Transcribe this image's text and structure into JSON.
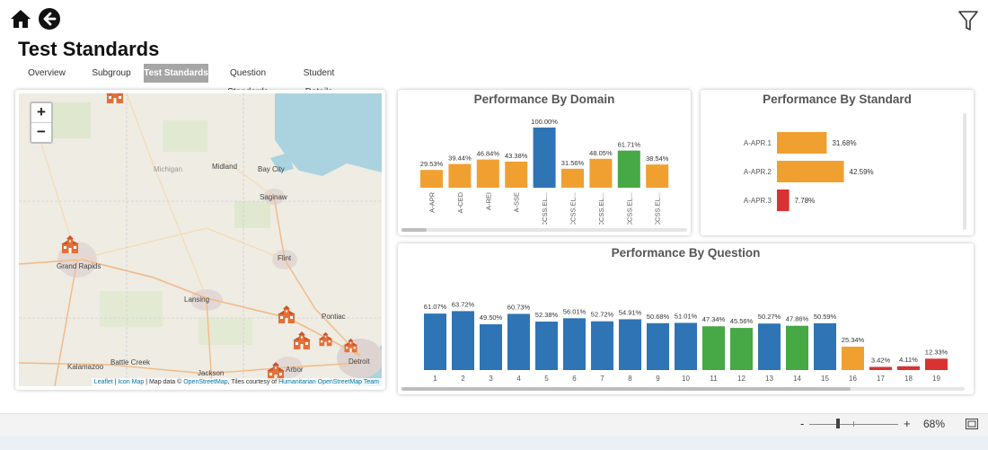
{
  "page_title": "Test Standards",
  "tabs": [
    {
      "label": "Overview",
      "active": false
    },
    {
      "label": "Subgroup",
      "active": false
    },
    {
      "label": "Test Standards",
      "active": true
    },
    {
      "label": "Question Standards",
      "active": false
    },
    {
      "label": "Student Details",
      "active": false
    }
  ],
  "icons": {
    "home": "home-icon",
    "back": "back-arrow-icon",
    "filter": "filter-icon",
    "school": "school-marker-icon",
    "fit": "fit-to-page-icon"
  },
  "colors": {
    "blue": "#2f74b5",
    "orange": "#f0a030",
    "green": "#47a846",
    "red": "#d93232",
    "tab_active": "#a6a6a6"
  },
  "map": {
    "zoom_in": "+",
    "zoom_out": "−",
    "cities": [
      {
        "name": "Michigan",
        "kind": "region"
      },
      {
        "name": "Midland"
      },
      {
        "name": "Bay City"
      },
      {
        "name": "Saginaw"
      },
      {
        "name": "Grand Rapids"
      },
      {
        "name": "Flint"
      },
      {
        "name": "Lansing"
      },
      {
        "name": "Pontiac"
      },
      {
        "name": "Kalamazoo"
      },
      {
        "name": "Battle Creek"
      },
      {
        "name": "Jackson"
      },
      {
        "name": "Arbor"
      },
      {
        "name": "Detroit"
      }
    ],
    "attribution": {
      "leaflet": "Leaflet",
      "sep1": " | ",
      "iconmap": "Icon Map",
      "text1": " | Map data © ",
      "osm": "OpenStreetMap",
      "text2": ", Tiles courtesy of ",
      "hot": "Humanitarian OpenStreetMap Team"
    }
  },
  "charts": {
    "domain": {
      "title": "Performance By Domain"
    },
    "standard": {
      "title": "Performance By Standard"
    },
    "question": {
      "title": "Performance By Question"
    }
  },
  "chart_data": [
    {
      "type": "bar",
      "title": "Performance By Domain",
      "categories": [
        "A-APR",
        "A-CED",
        "A-REI",
        "A-SSE",
        "CCSS.EL...",
        "CCSS.EL...",
        "CCSS.EL...",
        "CCSS.EL...",
        "CCSS.EL..."
      ],
      "values": [
        29.53,
        39.44,
        46.84,
        43.38,
        100.0,
        31.56,
        48.05,
        61.71,
        38.54
      ],
      "labels": [
        "29.53%",
        "39.44%",
        "46.84%",
        "43.38%",
        "100.00%",
        "31.56%",
        "48.05%",
        "61.71%",
        "38.54%"
      ],
      "colors": [
        "orange",
        "orange",
        "orange",
        "orange",
        "blue",
        "orange",
        "orange",
        "green",
        "orange"
      ],
      "ylim": [
        0,
        100
      ]
    },
    {
      "type": "bar",
      "orientation": "horizontal",
      "title": "Performance By Standard",
      "categories": [
        "A-APR.1",
        "A-APR.2",
        "A-APR.3"
      ],
      "values": [
        31.68,
        42.59,
        7.78
      ],
      "labels": [
        "31.68%",
        "42.59%",
        "7.78%"
      ],
      "colors": [
        "orange",
        "orange",
        "red"
      ],
      "xlim": [
        0,
        100
      ]
    },
    {
      "type": "bar",
      "title": "Performance By Question",
      "categories": [
        "1",
        "2",
        "3",
        "4",
        "5",
        "6",
        "7",
        "8",
        "9",
        "10",
        "11",
        "12",
        "13",
        "14",
        "15",
        "16",
        "17",
        "18",
        "19"
      ],
      "values": [
        61.07,
        63.72,
        49.5,
        60.73,
        52.38,
        56.01,
        52.72,
        54.91,
        50.68,
        51.01,
        47.34,
        45.56,
        50.27,
        47.86,
        50.59,
        25.34,
        3.42,
        4.11,
        12.33
      ],
      "labels": [
        "61.07%",
        "63.72%",
        "49.50%",
        "60.73%",
        "52.38%",
        "56.01%",
        "52.72%",
        "54.91%",
        "50.68%",
        "51.01%",
        "47.34%",
        "45.56%",
        "50.27%",
        "47.86%",
        "50.59%",
        "25.34%",
        "3.42%",
        "4.11%",
        "12.33%"
      ],
      "colors": [
        "blue",
        "blue",
        "blue",
        "blue",
        "blue",
        "blue",
        "blue",
        "blue",
        "blue",
        "blue",
        "green",
        "green",
        "blue",
        "green",
        "blue",
        "orange",
        "red",
        "red",
        "red"
      ],
      "ylim": [
        0,
        100
      ]
    }
  ],
  "zoom": {
    "minus": "-",
    "plus": "+",
    "percent": "68%"
  }
}
